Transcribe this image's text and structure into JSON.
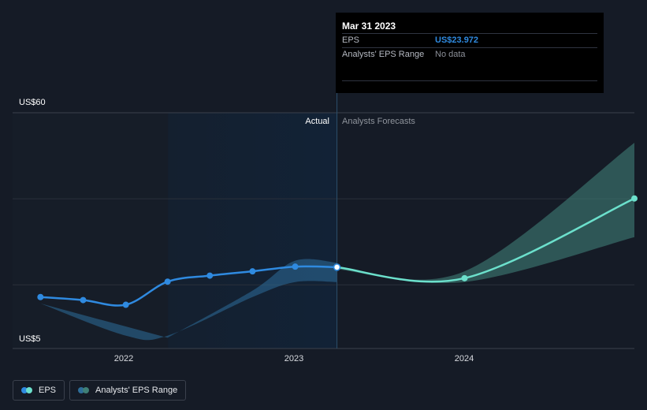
{
  "tooltip": {
    "date": "Mar 31 2023",
    "rows": [
      {
        "label": "EPS",
        "value": "US$23.972"
      },
      {
        "label": "Analysts' EPS Range",
        "value": "No data"
      }
    ]
  },
  "section_labels": {
    "actual": "Actual",
    "forecast": "Analysts Forecasts"
  },
  "legend": [
    {
      "label": "EPS",
      "colors": [
        "#2f8ae0",
        "#6ce0cc"
      ]
    },
    {
      "label": "Analysts' EPS Range",
      "colors": [
        "#2e6e9a",
        "#3f7f76"
      ]
    }
  ],
  "colors": {
    "background": "#151b26",
    "eps_actual": "#2f8ae0",
    "eps_forecast": "#6ce0cc",
    "range_actual": "#2e6e9a",
    "range_forecast": "#3f7f76",
    "past_highlight": "#122236"
  },
  "chart_data": {
    "type": "line",
    "y_tick_labels": [
      "US$60",
      "US$5"
    ],
    "ylim": [
      5,
      60
    ],
    "y_scale": "linear",
    "x_ticks": [
      "2022",
      "2023",
      "2024"
    ],
    "x_tick_values": [
      "2022-01-01",
      "2023-01-01",
      "2024-01-01"
    ],
    "xlim": [
      "2021-05-01",
      "2024-12-31"
    ],
    "divider_date": "2023-03-31",
    "highlight_start": "2022-04-01",
    "grid": true,
    "series": [
      {
        "name": "EPS",
        "segment": "actual",
        "points": [
          [
            "2021-06-30",
            17.0
          ],
          [
            "2021-09-30",
            16.3
          ],
          [
            "2021-12-31",
            15.2
          ],
          [
            "2022-03-31",
            20.6
          ],
          [
            "2022-06-30",
            22.0
          ],
          [
            "2022-09-30",
            23.0
          ],
          [
            "2022-12-31",
            24.1
          ],
          [
            "2023-03-31",
            23.972
          ]
        ]
      },
      {
        "name": "EPS",
        "segment": "forecast",
        "points": [
          [
            "2023-03-31",
            23.972
          ],
          [
            "2023-12-31",
            21.4
          ],
          [
            "2024-12-31",
            40.0
          ]
        ]
      }
    ],
    "range": {
      "actual": {
        "upper": [
          [
            "2022-03-31",
            7.5
          ],
          [
            "2022-09-30",
            18.5
          ],
          [
            "2022-12-31",
            25.5
          ],
          [
            "2023-03-31",
            25.0
          ]
        ],
        "lower": [
          [
            "2021-06-30",
            15.5
          ],
          [
            "2021-12-31",
            8.0
          ],
          [
            "2022-03-31",
            8.0
          ],
          [
            "2022-09-30",
            17.0
          ],
          [
            "2022-12-31",
            20.5
          ],
          [
            "2023-03-31",
            20.5
          ]
        ]
      },
      "forecast": {
        "upper": [
          [
            "2023-03-31",
            24.0
          ],
          [
            "2023-12-31",
            23.0
          ],
          [
            "2024-12-31",
            53.0
          ]
        ],
        "lower": [
          [
            "2023-03-31",
            23.5
          ],
          [
            "2023-12-31",
            20.5
          ],
          [
            "2024-12-31",
            31.0
          ]
        ]
      }
    }
  }
}
